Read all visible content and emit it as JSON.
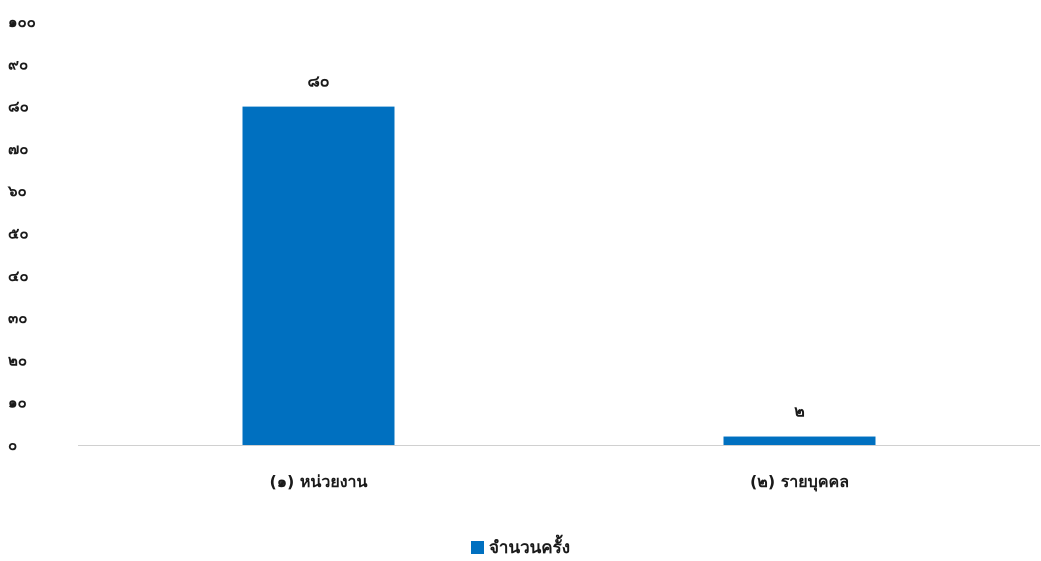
{
  "chart_data": {
    "type": "bar",
    "categories": [
      "(๑) หน่วยงาน",
      "(๒) รายบุคคล"
    ],
    "series": [
      {
        "name": "จำนวนครั้ง",
        "values": [
          80,
          2
        ],
        "color": "#0070C0"
      }
    ],
    "data_labels": [
      "๘๐",
      "๒"
    ],
    "ylim": [
      0,
      100
    ],
    "yticks": [
      0,
      10,
      20,
      30,
      40,
      50,
      60,
      70,
      80,
      90,
      100
    ],
    "ytick_labels": [
      "๐",
      "๑๐",
      "๒๐",
      "๓๐",
      "๔๐",
      "๕๐",
      "๖๐",
      "๗๐",
      "๘๐",
      "๙๐",
      "๑๐๐"
    ],
    "grid": false,
    "legend_position": "bottom"
  }
}
